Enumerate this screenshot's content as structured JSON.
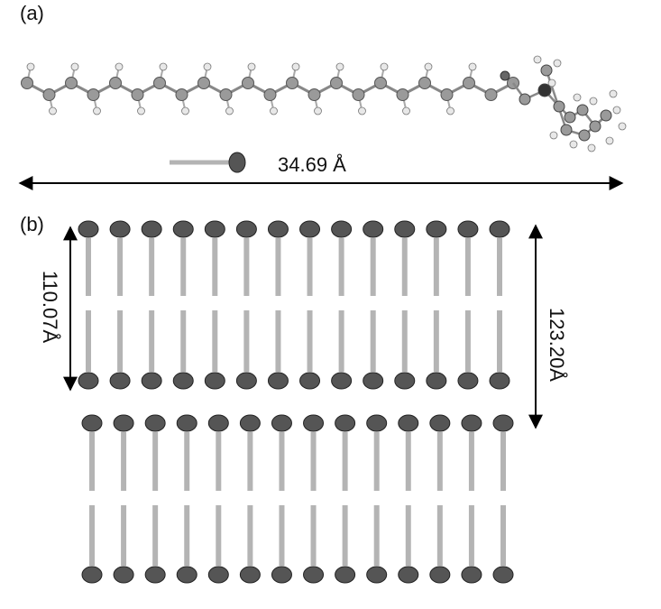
{
  "panel_a": {
    "label": "(a)",
    "length_label": "34.69 Å"
  },
  "panel_b": {
    "label": "(b)",
    "inner_length_label": "110.07Å",
    "outer_length_label": "123.20Å",
    "lipids_per_row": 14,
    "rows": 2
  },
  "colors": {
    "head": "#555555",
    "tail": "#b4b4b4",
    "carbon": "#9a9a9a",
    "hydrogen": "#e8e8e8",
    "nitrogen": "#333333"
  }
}
